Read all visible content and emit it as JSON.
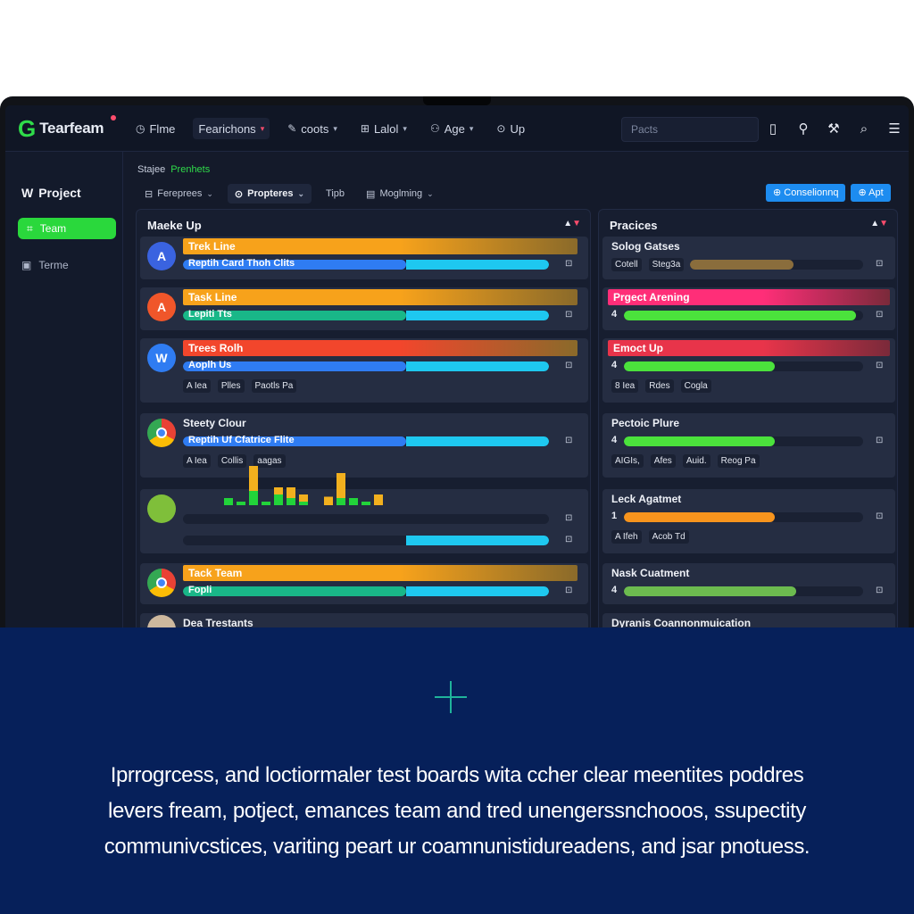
{
  "app": {
    "brand_letter": "G",
    "brand_name": "Tearfeam"
  },
  "nav": [
    {
      "icon": "clock-icon",
      "glyph": "◷",
      "label": "Flme",
      "caret": false
    },
    {
      "icon": "",
      "glyph": "",
      "label": "Fearichons",
      "caret": true,
      "active": true
    },
    {
      "icon": "pencil-icon",
      "glyph": "✎",
      "label": "coots",
      "caret": true
    },
    {
      "icon": "grid-icon",
      "glyph": "⊞",
      "label": "Lalol",
      "caret": true
    },
    {
      "icon": "users-icon",
      "glyph": "⚇",
      "label": "Age",
      "caret": true
    },
    {
      "icon": "help-icon",
      "glyph": "⊙",
      "label": "Up",
      "caret": false
    }
  ],
  "search": {
    "placeholder": "Pacts"
  },
  "sidebar": {
    "title_icon": "W",
    "title": "Project",
    "team": "Team",
    "item": "Terme"
  },
  "breadcrumb": {
    "first": "Stajee",
    "second": "Prenhets"
  },
  "filters": [
    {
      "label": "Fereprees"
    },
    {
      "label": "Propteres"
    },
    {
      "label": "Tipb"
    },
    {
      "label": "Moglming"
    }
  ],
  "actions": {
    "primary": "Conselionnq",
    "secondary": "Apt"
  },
  "left_column": {
    "title": "Maeke Up",
    "cards": [
      {
        "title": "Trek Line",
        "title_color": "#f7a21b",
        "bar_label": "Reptih Card Thoh Clits",
        "fill_color": "#2f7cf2",
        "fill": 0.61,
        "avatar_color": "#3a63e0",
        "avatar_glyph": "A",
        "tags": []
      },
      {
        "title": "Task Line",
        "title_color": "#f7a21b",
        "bar_label": "Lepiti Tts",
        "fill_color": "#19b788",
        "fill": 0.61,
        "avatar_color": "#f0562a",
        "avatar_glyph": "A",
        "tags": []
      },
      {
        "title": "Trees Rolh",
        "title_color": "#f2462c",
        "bar_label": "Aoplh Us",
        "fill_color": "#2f7cf2",
        "fill": 0.61,
        "avatar_color": "#2f7cf2",
        "avatar_glyph": "W",
        "tags": [
          "A Iea",
          "Plles",
          "Paotls Pa"
        ]
      },
      {
        "title": "Steety Clour",
        "title_color": "",
        "bar_label": "Reptih Uf Cfatrice Flite",
        "fill_color": "#2f7cf2",
        "fill": 0.61,
        "avatar_color": "#e94235",
        "avatar_glyph": "",
        "tags": [
          "A Iea",
          "Collis",
          "aagas"
        ]
      },
      {
        "title": "",
        "title_color": "",
        "bar_label": "",
        "fill_color": "",
        "fill": 0.61,
        "avatar_color": "#7fbf3a",
        "avatar_glyph": "",
        "tags": []
      },
      {
        "title": "Tack Team",
        "title_color": "#f7a21b",
        "bar_label": "Fopli",
        "fill_color": "#19b788",
        "fill": 0.61,
        "avatar_color": "#e94235",
        "avatar_glyph": "",
        "tags": []
      },
      {
        "title": "Dea Trestants",
        "title_color": "",
        "bar_label": "",
        "fill_color": "",
        "fill": 0,
        "avatar_color": "#cdb89e",
        "avatar_glyph": "",
        "tags": []
      }
    ],
    "histogram": {
      "green": [
        0.55,
        0.45,
        0.45,
        0.65,
        0.6,
        0.75,
        0.6,
        0.7,
        0.65,
        0.6,
        0.55,
        0.55,
        0.65,
        0.65,
        0.6,
        0.55,
        0.45
      ],
      "orange": [
        0,
        0,
        0,
        0,
        0,
        0.35,
        0,
        0.1,
        0.15,
        0.1,
        0,
        0.12,
        0.35,
        0,
        0,
        0.15,
        0
      ]
    }
  },
  "right_column": {
    "title": "Pracices",
    "cards": [
      {
        "title": "Solog Gatses",
        "title_color": "",
        "num": "",
        "fill_color": "#8a6d3c",
        "fill": 0.6,
        "tags": [
          "Cotell",
          "Steg3a"
        ]
      },
      {
        "title": "Prgect Arening",
        "title_color": "#ff2e78",
        "num": "4",
        "fill_color": "#4be23c",
        "fill": 0.97,
        "tags": []
      },
      {
        "title": "Emoct Up",
        "title_color": "#e8344a",
        "num": "4",
        "fill_color": "#4be23c",
        "fill": 0.63,
        "tags": [
          "8 Iea",
          "Rdes",
          "Cogla"
        ]
      },
      {
        "title": "Pectoic Plure",
        "title_color": "",
        "num": "4",
        "fill_color": "#4be23c",
        "fill": 0.63,
        "tags": [
          "AIGIs,",
          "Afes",
          "Auid.",
          "Reog Pa"
        ]
      },
      {
        "title": "Leck Agatmet",
        "title_color": "",
        "num": "1",
        "fill_color": "#f7941d",
        "fill": 0.63,
        "tags": [
          "A Ifeh",
          "Acob Td"
        ]
      },
      {
        "title": "Nask Cuatment",
        "title_color": "",
        "num": "4",
        "fill_color": "#6cbb4f",
        "fill": 0.72,
        "tags": []
      },
      {
        "title": "Dyranis Coannonmuication",
        "title_color": "",
        "num": "",
        "fill_color": "",
        "fill": 0,
        "tags": []
      }
    ]
  },
  "caption": {
    "line1": "Iprrogrcess, and loctiormaler test boards wita ccher clear meentites poddres",
    "line2": "levers fream, potject, emances team and tred unengerssnchooos, ssupectity",
    "line3": "communivcstices, variting peart ur coamnunistidureadens, and jsar pnotuess."
  }
}
